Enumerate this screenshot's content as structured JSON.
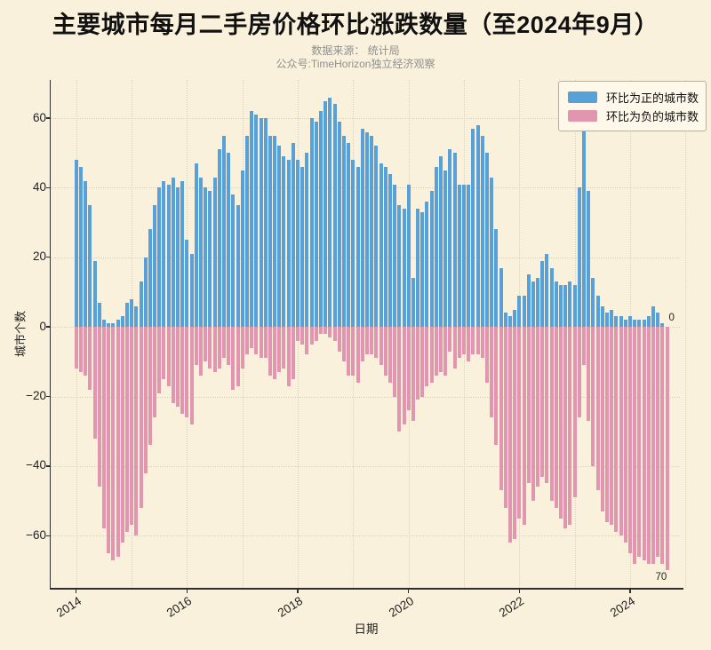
{
  "page": {
    "background": "#f9f1dc"
  },
  "header": {
    "title": "主要城市每月二手房价格环比涨跌数量（至2024年9月）",
    "subtitle_line1": "数据来源： 统计局",
    "subtitle_line2": "公众号:TimeHorizon独立经济观察"
  },
  "chart_data": {
    "type": "bar",
    "title": "主要城市每月二手房价格环比涨跌数量（至2024年9月）",
    "xlabel": "日期",
    "ylabel": "城市个数",
    "grid": true,
    "legend_position": "upper right",
    "legend": [
      {
        "label": "环比为正的城市数",
        "color": "#58a1d8"
      },
      {
        "label": "环比为负的城市数",
        "color": "#e295ae"
      }
    ],
    "ylim": [
      -75,
      71
    ],
    "yticks": [
      60,
      40,
      20,
      0,
      -20,
      -40,
      -60
    ],
    "ytick_labels": [
      "60",
      "40",
      "20",
      "0",
      "−20",
      "−40",
      "−60"
    ],
    "xtick_years": [
      "2014",
      "2016",
      "2018",
      "2020",
      "2022",
      "2024"
    ],
    "x_start": "2014-01",
    "x_end": "2024-09",
    "months": [
      "2014-01",
      "2014-02",
      "2014-03",
      "2014-04",
      "2014-05",
      "2014-06",
      "2014-07",
      "2014-08",
      "2014-09",
      "2014-10",
      "2014-11",
      "2014-12",
      "2015-01",
      "2015-02",
      "2015-03",
      "2015-04",
      "2015-05",
      "2015-06",
      "2015-07",
      "2015-08",
      "2015-09",
      "2015-10",
      "2015-11",
      "2015-12",
      "2016-01",
      "2016-02",
      "2016-03",
      "2016-04",
      "2016-05",
      "2016-06",
      "2016-07",
      "2016-08",
      "2016-09",
      "2016-10",
      "2016-11",
      "2016-12",
      "2017-01",
      "2017-02",
      "2017-03",
      "2017-04",
      "2017-05",
      "2017-06",
      "2017-07",
      "2017-08",
      "2017-09",
      "2017-10",
      "2017-11",
      "2017-12",
      "2018-01",
      "2018-02",
      "2018-03",
      "2018-04",
      "2018-05",
      "2018-06",
      "2018-07",
      "2018-08",
      "2018-09",
      "2018-10",
      "2018-11",
      "2018-12",
      "2019-01",
      "2019-02",
      "2019-03",
      "2019-04",
      "2019-05",
      "2019-06",
      "2019-07",
      "2019-08",
      "2019-09",
      "2019-10",
      "2019-11",
      "2019-12",
      "2020-01",
      "2020-02",
      "2020-03",
      "2020-04",
      "2020-05",
      "2020-06",
      "2020-07",
      "2020-08",
      "2020-09",
      "2020-10",
      "2020-11",
      "2020-12",
      "2021-01",
      "2021-02",
      "2021-03",
      "2021-04",
      "2021-05",
      "2021-06",
      "2021-07",
      "2021-08",
      "2021-09",
      "2021-10",
      "2021-11",
      "2021-12",
      "2022-01",
      "2022-02",
      "2022-03",
      "2022-04",
      "2022-05",
      "2022-06",
      "2022-07",
      "2022-08",
      "2022-09",
      "2022-10",
      "2022-11",
      "2022-12",
      "2023-01",
      "2023-02",
      "2023-03",
      "2023-04",
      "2023-05",
      "2023-06",
      "2023-07",
      "2023-08",
      "2023-09",
      "2023-10",
      "2023-11",
      "2023-12",
      "2024-01",
      "2024-02",
      "2024-03",
      "2024-04",
      "2024-05",
      "2024-06",
      "2024-07",
      "2024-08",
      "2024-09"
    ],
    "series": [
      {
        "name": "环比为正的城市数",
        "color": "#58a1d8",
        "values": [
          48,
          46,
          42,
          35,
          19,
          7,
          2,
          1,
          1,
          2,
          3,
          7,
          8,
          6,
          13,
          20,
          28,
          35,
          40,
          42,
          41,
          43,
          40,
          42,
          25,
          21,
          47,
          43,
          40,
          39,
          43,
          51,
          55,
          50,
          38,
          35,
          45,
          55,
          62,
          61,
          60,
          60,
          55,
          55,
          52,
          49,
          48,
          53,
          48,
          46,
          50,
          60,
          59,
          62,
          65,
          66,
          64,
          59,
          55,
          53,
          48,
          46,
          57,
          56,
          55,
          52,
          47,
          46,
          44,
          41,
          35,
          34,
          41,
          14,
          34,
          33,
          36,
          39,
          46,
          49,
          45,
          51,
          50,
          41,
          41,
          41,
          57,
          58,
          55,
          50,
          43,
          28,
          17,
          4,
          3,
          5,
          9,
          9,
          15,
          13,
          14,
          19,
          21,
          17,
          13,
          12,
          12,
          13,
          12,
          40,
          57,
          39,
          14,
          9,
          6,
          4,
          5,
          3,
          3,
          2,
          3,
          2,
          2,
          2,
          3,
          6,
          4,
          1,
          0
        ]
      },
      {
        "name": "环比为负的城市数",
        "color": "#e295ae",
        "values": [
          -12,
          -13,
          -14,
          -18,
          -32,
          -46,
          -58,
          -65,
          -67,
          -66,
          -62,
          -59,
          -57,
          -60,
          -52,
          -42,
          -34,
          -26,
          -19,
          -15,
          -17,
          -22,
          -23,
          -25,
          -26,
          -28,
          -11,
          -14,
          -10,
          -12,
          -13,
          -12,
          -9,
          -11,
          -18,
          -17,
          -12,
          -8,
          -6,
          -8,
          -9,
          -9,
          -14,
          -15,
          -13,
          -12,
          -17,
          -15,
          -4,
          -5,
          -8,
          -5,
          -4,
          -2,
          -2,
          -3,
          -4,
          -7,
          -10,
          -14,
          -14,
          -16,
          -10,
          -8,
          -8,
          -9,
          -11,
          -14,
          -16,
          -20,
          -30,
          -28,
          -24,
          -27,
          -21,
          -20,
          -17,
          -16,
          -14,
          -13,
          -14,
          -7,
          -12,
          -9,
          -8,
          -10,
          -8,
          -8,
          -9,
          -16,
          -26,
          -34,
          -47,
          -52,
          -62,
          -61,
          -55,
          -57,
          -45,
          -50,
          -46,
          -43,
          -45,
          -50,
          -52,
          -55,
          -58,
          -57,
          -49,
          -26,
          -11,
          -27,
          -40,
          -47,
          -53,
          -56,
          -57,
          -59,
          -60,
          -62,
          -65,
          -68,
          -66,
          -67,
          -68,
          -68,
          -66,
          -68,
          -70
        ]
      }
    ],
    "annotations": [
      {
        "text": "0",
        "month": "2024-09",
        "value": 0,
        "placement": "above-zero-line"
      },
      {
        "text": "70",
        "month": "2024-09",
        "value": -70,
        "placement": "below-last-bar"
      }
    ]
  }
}
